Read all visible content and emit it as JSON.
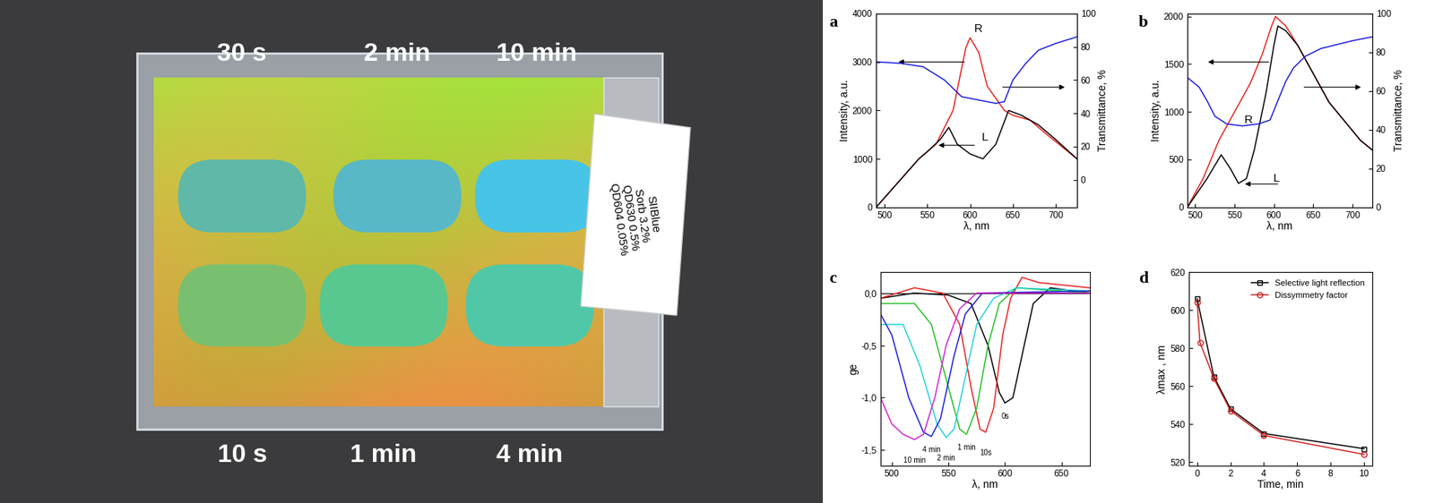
{
  "photo": {
    "top_labels": [
      "30 s",
      "2 min",
      "10 min"
    ],
    "bottom_labels": [
      "10 s",
      "1 min",
      "4 min"
    ],
    "sample_label": [
      "SIIBlue",
      "Sorb 3.2%",
      "QD630 0.5%",
      "QD604 0.05%"
    ]
  },
  "chart_data": [
    {
      "panel": "a",
      "type": "line",
      "xlabel": "λ, nm",
      "ylabel": "Intensity, a.u.",
      "y2label": "Transmittance, %",
      "xlim": [
        490,
        725
      ],
      "xticks": [
        500,
        550,
        600,
        650,
        700
      ],
      "ylim": [
        0,
        4000
      ],
      "yticks": [
        0,
        1000,
        2000,
        3000,
        4000
      ],
      "y2lim": [
        -16.5,
        100
      ],
      "y2ticks": [
        0,
        20,
        40,
        60,
        80,
        100
      ],
      "series": [
        {
          "name": "R",
          "color": "#e8201c",
          "x": [
            490,
            510,
            540,
            560,
            580,
            595,
            600,
            610,
            620,
            640,
            650,
            670,
            690,
            725
          ],
          "values": [
            0,
            400,
            1000,
            1300,
            2000,
            3300,
            3500,
            3200,
            2500,
            2000,
            1900,
            1800,
            1500,
            1000
          ]
        },
        {
          "name": "L",
          "color": "#000000",
          "x": [
            490,
            510,
            540,
            550,
            565,
            575,
            585,
            600,
            615,
            630,
            645,
            660,
            680,
            700,
            725
          ],
          "values": [
            0,
            400,
            1000,
            1150,
            1400,
            1650,
            1300,
            1100,
            1000,
            1300,
            2000,
            1900,
            1700,
            1400,
            1000
          ]
        },
        {
          "color": "#1a1adc",
          "axis": "y2",
          "x": [
            490,
            520,
            545,
            570,
            590,
            610,
            630,
            640,
            650,
            665,
            680,
            700,
            725
          ],
          "values": [
            71,
            70,
            68,
            60,
            50,
            48,
            46,
            47,
            60,
            70,
            78,
            82,
            86
          ]
        }
      ]
    },
    {
      "panel": "b",
      "type": "line",
      "xlabel": "λ, nm",
      "ylabel": "Intensity, a.u.",
      "y2label": "Transmittance, %",
      "xlim": [
        490,
        725
      ],
      "xticks": [
        500,
        550,
        600,
        650,
        700
      ],
      "ylim": [
        0,
        2030
      ],
      "yticks": [
        0,
        500,
        1000,
        1500,
        2000
      ],
      "y2lim": [
        0,
        100
      ],
      "y2ticks": [
        0,
        20,
        40,
        60,
        80,
        100
      ],
      "series": [
        {
          "name": "R",
          "color": "#e8201c",
          "x": [
            490,
            510,
            530,
            550,
            570,
            585,
            597,
            602,
            615,
            630,
            650,
            670,
            690,
            710,
            725
          ],
          "values": [
            0,
            300,
            700,
            1000,
            1300,
            1600,
            1900,
            2000,
            1900,
            1700,
            1400,
            1100,
            900,
            700,
            600
          ]
        },
        {
          "name": "L",
          "color": "#000000",
          "x": [
            490,
            515,
            533,
            545,
            555,
            565,
            575,
            590,
            600,
            605,
            615,
            630,
            650,
            670,
            690,
            710,
            725
          ],
          "values": [
            0,
            300,
            550,
            400,
            250,
            300,
            600,
            1200,
            1700,
            1900,
            1850,
            1700,
            1400,
            1100,
            900,
            700,
            600
          ]
        },
        {
          "color": "#1a1adc",
          "axis": "y2",
          "x": [
            490,
            505,
            515,
            525,
            540,
            560,
            580,
            595,
            605,
            615,
            625,
            640,
            660,
            680,
            700,
            725
          ],
          "values": [
            67,
            62,
            55,
            47,
            43,
            42,
            43,
            45,
            55,
            65,
            72,
            78,
            82,
            84,
            86,
            88
          ]
        }
      ]
    },
    {
      "panel": "c",
      "type": "line",
      "xlabel": "λ, nm",
      "ylabel": "ge",
      "xlim": [
        490,
        675
      ],
      "xticks": [
        500,
        550,
        600,
        650
      ],
      "ylim": [
        -1.65,
        0.2
      ],
      "yticks": [
        {
          "value": -1.5,
          "label": "-1,5"
        },
        {
          "value": -1.0,
          "label": "-1,0"
        },
        {
          "value": -0.5,
          "label": "-0,5"
        },
        {
          "value": 0.0,
          "label": "0,0"
        }
      ],
      "series": [
        {
          "name": "0s",
          "color": "#000000",
          "x": [
            490,
            520,
            550,
            570,
            585,
            595,
            600,
            607,
            615,
            625,
            640,
            675
          ],
          "values": [
            -0.05,
            0.0,
            -0.02,
            -0.1,
            -0.5,
            -0.95,
            -1.05,
            -1.0,
            -0.6,
            -0.1,
            0.05,
            0.0
          ]
        },
        {
          "name": "10s",
          "color": "#e8201c",
          "x": [
            490,
            520,
            545,
            560,
            570,
            578,
            583,
            590,
            598,
            605,
            615,
            630,
            675
          ],
          "values": [
            -0.05,
            0.05,
            0.0,
            -0.3,
            -0.9,
            -1.3,
            -1.33,
            -1.1,
            -0.4,
            -0.05,
            0.15,
            0.1,
            0.05
          ]
        },
        {
          "name": "1 min",
          "color": "#20c020",
          "x": [
            490,
            520,
            535,
            550,
            560,
            566,
            575,
            585,
            595,
            610,
            675
          ],
          "values": [
            -0.1,
            -0.1,
            -0.3,
            -0.9,
            -1.3,
            -1.35,
            -1.1,
            -0.5,
            -0.1,
            0.05,
            0.0
          ]
        },
        {
          "name": "2 min",
          "color": "#20d0d8",
          "x": [
            490,
            510,
            525,
            540,
            548,
            555,
            565,
            575,
            590,
            610,
            675
          ],
          "values": [
            -0.3,
            -0.3,
            -0.7,
            -1.25,
            -1.38,
            -1.3,
            -0.8,
            -0.3,
            -0.05,
            0.05,
            0.02
          ]
        },
        {
          "name": "4 min",
          "color": "#1a1adc",
          "x": [
            490,
            500,
            515,
            528,
            535,
            543,
            555,
            565,
            580,
            675
          ],
          "values": [
            -0.2,
            -0.4,
            -1.0,
            -1.33,
            -1.37,
            -1.2,
            -0.6,
            -0.2,
            0.0,
            0.02
          ]
        },
        {
          "name": "10 min",
          "color": "#d020d0",
          "x": [
            490,
            500,
            510,
            520,
            528,
            538,
            548,
            560,
            575,
            675
          ],
          "values": [
            -1.0,
            -1.25,
            -1.35,
            -1.4,
            -1.35,
            -1.0,
            -0.5,
            -0.15,
            0.0,
            0.0
          ]
        }
      ]
    },
    {
      "panel": "d",
      "type": "line",
      "xlabel": "Time, min",
      "ylabel": "λmax , nm",
      "xlim": [
        -0.5,
        10.5
      ],
      "xticks": [
        0,
        2,
        4,
        6,
        8,
        10
      ],
      "ylim": [
        518,
        620
      ],
      "yticks": [
        520,
        540,
        560,
        580,
        600,
        620
      ],
      "legend": "upper right",
      "series": [
        {
          "name": "Selective light reflection",
          "color": "#000000",
          "marker": "square",
          "line_style": "solid",
          "x": [
            0,
            1,
            2,
            4,
            10
          ],
          "values": [
            606,
            565,
            548,
            535,
            527
          ]
        },
        {
          "name": "Dissymmetry factor",
          "color": "#d02020",
          "marker": "circle",
          "line_style": "solid",
          "x": [
            0,
            0.17,
            1,
            2,
            4,
            10
          ],
          "values": [
            604,
            583,
            564,
            547,
            534,
            524
          ]
        }
      ]
    }
  ]
}
